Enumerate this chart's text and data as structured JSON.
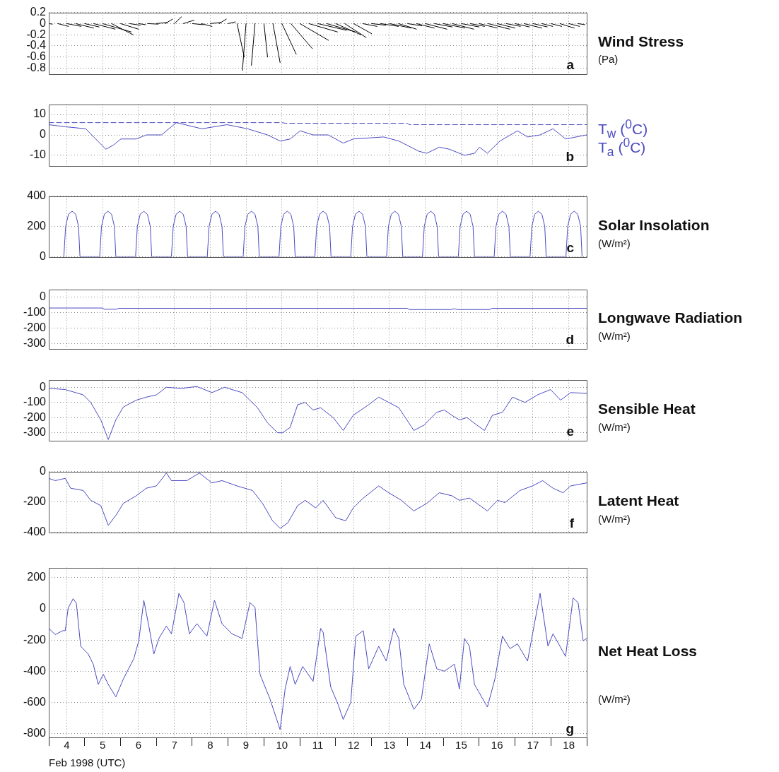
{
  "chart_data": [
    {
      "type": "line",
      "ylabel": "Wind Stress (Pa)",
      "annotations": [
        "a"
      ],
      "xlim": [
        4,
        19
      ],
      "xticks": [
        4.5,
        5.5,
        6.5,
        7.5,
        8.5,
        9.5,
        10.5,
        11.5,
        12.5,
        13.5,
        14.5,
        15.5,
        16.5,
        17.5,
        18.5
      ],
      "ylim": [
        -0.9,
        0.2
      ],
      "yticks": [
        0.2,
        0,
        -0.2,
        -0.4,
        -0.6,
        -0.8
      ],
      "grid": true,
      "tick_labels": "y",
      "marker": "none",
      "series": [
        {
          "color": "#000000",
          "x": [
            4,
            4.1
          ],
          "values": [
            0,
            -0.01
          ]
        },
        {
          "color": "#000000",
          "x": [
            4.25,
            4.55
          ],
          "values": [
            0,
            -0.05
          ]
        },
        {
          "color": "#000000",
          "x": [
            4.5,
            4.9
          ],
          "values": [
            0,
            -0.05
          ]
        },
        {
          "color": "#000000",
          "x": [
            4.75,
            5.25
          ],
          "values": [
            0,
            -0.08
          ]
        },
        {
          "color": "#000000",
          "x": [
            5,
            5.4
          ],
          "values": [
            0,
            -0.06
          ]
        },
        {
          "color": "#000000",
          "x": [
            5.25,
            5.85
          ],
          "values": [
            0,
            -0.1
          ]
        },
        {
          "color": "#000000",
          "x": [
            5.5,
            6.3
          ],
          "values": [
            0,
            -0.15
          ]
        },
        {
          "color": "#000000",
          "x": [
            5.75,
            6.35
          ],
          "values": [
            0,
            -0.2
          ]
        },
        {
          "color": "#000000",
          "x": [
            6,
            6.5
          ],
          "values": [
            0,
            -0.1
          ]
        },
        {
          "color": "#000000",
          "x": [
            6.25,
            6.55
          ],
          "values": [
            0,
            -0.03
          ]
        },
        {
          "color": "#000000",
          "x": [
            6.5,
            6.7
          ],
          "values": [
            0,
            -0.02
          ]
        },
        {
          "color": "#000000",
          "x": [
            6.75,
            7.05
          ],
          "values": [
            0,
            -0.01
          ]
        },
        {
          "color": "#000000",
          "x": [
            7,
            7.3
          ],
          "values": [
            0,
            0.02
          ]
        },
        {
          "color": "#000000",
          "x": [
            7.25,
            7.45
          ],
          "values": [
            0,
            0.08
          ]
        },
        {
          "color": "#000000",
          "x": [
            7.5,
            7.7
          ],
          "values": [
            0,
            0.12
          ]
        },
        {
          "color": "#000000",
          "x": [
            7.75,
            8.05
          ],
          "values": [
            0,
            0.06
          ]
        },
        {
          "color": "#000000",
          "x": [
            8,
            8.3
          ],
          "values": [
            0,
            -0.02
          ]
        },
        {
          "color": "#000000",
          "x": [
            8.25,
            8.55
          ],
          "values": [
            0,
            -0.05
          ]
        },
        {
          "color": "#000000",
          "x": [
            8.5,
            8.8
          ],
          "values": [
            0,
            0.02
          ]
        },
        {
          "color": "#000000",
          "x": [
            8.75,
            8.95
          ],
          "values": [
            0,
            0.08
          ]
        },
        {
          "color": "#000000",
          "x": [
            9,
            9.2
          ],
          "values": [
            0,
            0.03
          ]
        },
        {
          "color": "#000000",
          "x": [
            9.25,
            9.45
          ],
          "values": [
            0,
            -0.6
          ]
        },
        {
          "color": "#000000",
          "x": [
            9.5,
            9.4
          ],
          "values": [
            0,
            -0.84
          ]
        },
        {
          "color": "#000000",
          "x": [
            9.75,
            9.65
          ],
          "values": [
            0,
            -0.75
          ]
        },
        {
          "color": "#000000",
          "x": [
            10,
            10.1
          ],
          "values": [
            0,
            -0.6
          ]
        },
        {
          "color": "#000000",
          "x": [
            10.25,
            10.45
          ],
          "values": [
            0,
            -0.7
          ]
        },
        {
          "color": "#000000",
          "x": [
            10.5,
            10.9
          ],
          "values": [
            0,
            -0.55
          ]
        },
        {
          "color": "#000000",
          "x": [
            10.75,
            11.35
          ],
          "values": [
            0,
            -0.45
          ]
        },
        {
          "color": "#000000",
          "x": [
            11,
            11.8
          ],
          "values": [
            0,
            -0.3
          ]
        },
        {
          "color": "#000000",
          "x": [
            11.25,
            12.05
          ],
          "values": [
            0,
            -0.15
          ]
        },
        {
          "color": "#000000",
          "x": [
            11.5,
            12.3
          ],
          "values": [
            0,
            -0.12
          ]
        },
        {
          "color": "#000000",
          "x": [
            11.75,
            12.55
          ],
          "values": [
            0,
            -0.15
          ]
        },
        {
          "color": "#000000",
          "x": [
            12,
            12.7
          ],
          "values": [
            0,
            -0.2
          ]
        },
        {
          "color": "#000000",
          "x": [
            12.25,
            12.85
          ],
          "values": [
            0,
            -0.25
          ]
        },
        {
          "color": "#000000",
          "x": [
            12.5,
            13
          ],
          "values": [
            0,
            -0.18
          ]
        },
        {
          "color": "#000000",
          "x": [
            12.75,
            13.15
          ],
          "values": [
            0,
            -0.05
          ]
        },
        {
          "color": "#000000",
          "x": [
            13,
            13.4
          ],
          "values": [
            0,
            -0.03
          ]
        },
        {
          "color": "#000000",
          "x": [
            13.25,
            13.75
          ],
          "values": [
            0,
            -0.05
          ]
        },
        {
          "color": "#000000",
          "x": [
            13.5,
            14.1
          ],
          "values": [
            0,
            -0.08
          ]
        },
        {
          "color": "#000000",
          "x": [
            13.75,
            14.25
          ],
          "values": [
            0,
            -0.1
          ]
        },
        {
          "color": "#000000",
          "x": [
            14,
            14.4
          ],
          "values": [
            0,
            -0.04
          ]
        },
        {
          "color": "#000000",
          "x": [
            14.25,
            14.75
          ],
          "values": [
            0,
            -0.08
          ]
        },
        {
          "color": "#000000",
          "x": [
            14.5,
            15.1
          ],
          "values": [
            0,
            -0.1
          ]
        },
        {
          "color": "#000000",
          "x": [
            14.75,
            15.25
          ],
          "values": [
            0,
            -0.06
          ]
        },
        {
          "color": "#000000",
          "x": [
            15,
            15.6
          ],
          "values": [
            0,
            -0.08
          ]
        },
        {
          "color": "#000000",
          "x": [
            15.25,
            15.85
          ],
          "values": [
            0,
            -0.1
          ]
        },
        {
          "color": "#000000",
          "x": [
            15.5,
            16
          ],
          "values": [
            0,
            -0.06
          ]
        },
        {
          "color": "#000000",
          "x": [
            15.75,
            16.15
          ],
          "values": [
            0,
            -0.05
          ]
        },
        {
          "color": "#000000",
          "x": [
            16,
            16.5
          ],
          "values": [
            0,
            -0.08
          ]
        },
        {
          "color": "#000000",
          "x": [
            16.25,
            16.85
          ],
          "values": [
            0,
            -0.1
          ]
        },
        {
          "color": "#000000",
          "x": [
            16.5,
            17
          ],
          "values": [
            0,
            -0.08
          ]
        },
        {
          "color": "#000000",
          "x": [
            16.75,
            17.15
          ],
          "values": [
            0,
            -0.05
          ]
        },
        {
          "color": "#000000",
          "x": [
            17,
            17.4
          ],
          "values": [
            0,
            -0.06
          ]
        },
        {
          "color": "#000000",
          "x": [
            17.25,
            17.75
          ],
          "values": [
            0,
            -0.08
          ]
        },
        {
          "color": "#000000",
          "x": [
            17.5,
            17.9
          ],
          "values": [
            0,
            -0.06
          ]
        },
        {
          "color": "#000000",
          "x": [
            17.75,
            18.05
          ],
          "values": [
            0,
            -0.05
          ]
        },
        {
          "color": "#000000",
          "x": [
            18,
            18.3
          ],
          "values": [
            0,
            -0.05
          ]
        },
        {
          "color": "#000000",
          "x": [
            18.25,
            18.65
          ],
          "values": [
            0,
            -0.08
          ]
        },
        {
          "color": "#000000",
          "x": [
            18.5,
            18.8
          ],
          "values": [
            0,
            -0.05
          ]
        },
        {
          "color": "#000000",
          "x": [
            18.75,
            18.95
          ],
          "values": [
            0,
            -0.02
          ]
        }
      ]
    },
    {
      "type": "line",
      "annotations": [
        "b"
      ],
      "legend": "right",
      "xlim": [
        4,
        19
      ],
      "xticks": [
        4.5,
        5.5,
        6.5,
        7.5,
        8.5,
        9.5,
        10.5,
        11.5,
        12.5,
        13.5,
        14.5,
        15.5,
        16.5,
        17.5,
        18.5
      ],
      "ylim": [
        -15,
        15
      ],
      "yticks": [
        10,
        0,
        -10
      ],
      "grid": true,
      "tick_labels": "y",
      "marker": "none",
      "series": [
        {
          "name": "T$_{w}$ ($^{0}$C)",
          "color": "#4a4ac0",
          "line_style": "dashed",
          "x": [
            4,
            10.5,
            10.6,
            14,
            14.05,
            19
          ],
          "values": [
            6,
            6,
            5.7,
            5.7,
            5,
            5
          ]
        },
        {
          "name": "T$_{a}$ ($^{0}$C)",
          "color": "#4a4ac0",
          "line_style": "solid",
          "x": [
            4,
            4.46,
            5.03,
            5.31,
            5.59,
            5.8,
            6.01,
            6.44,
            6.72,
            7.14,
            7.56,
            8.27,
            8.97,
            9.54,
            10.1,
            10.45,
            10.73,
            11.01,
            11.37,
            11.79,
            12.21,
            12.49,
            13.34,
            13.76,
            14.32,
            14.54,
            14.89,
            15.17,
            15.59,
            15.87,
            16.01,
            16.23,
            16.58,
            17.07,
            17.35,
            17.7,
            18.06,
            18.41,
            19
          ],
          "values": [
            5,
            4,
            3,
            -2,
            -7,
            -5,
            -2,
            -2,
            0,
            0,
            6,
            3,
            5,
            3,
            0,
            -3,
            -2,
            2,
            0,
            0,
            -4,
            -2,
            -1,
            -3,
            -8,
            -9,
            -6,
            -7,
            -10,
            -9,
            -6,
            -9,
            -3,
            2,
            -1,
            0,
            3,
            -2,
            0
          ]
        }
      ]
    },
    {
      "type": "line",
      "ylabel": "Solar Insolation (W/m²)",
      "annotations": [
        "c"
      ],
      "xlim": [
        4,
        19
      ],
      "xticks": [
        4.5,
        5.5,
        6.5,
        7.5,
        8.5,
        9.5,
        10.5,
        11.5,
        12.5,
        13.5,
        14.5,
        15.5,
        16.5,
        17.5,
        18.5
      ],
      "ylim": [
        0,
        400
      ],
      "yticks": [
        0,
        200,
        400
      ],
      "grid": true,
      "tick_labels": "y",
      "marker": "none",
      "series": [
        {
          "color": "#4a4ac0",
          "x": [
            4.42,
            4.47,
            4.55,
            4.65,
            4.75,
            4.83,
            4.87,
            5.42,
            5.47,
            5.55,
            5.65,
            5.75,
            5.83,
            5.87,
            6.42,
            6.47,
            6.55,
            6.65,
            6.75,
            6.83,
            6.87,
            7.42,
            7.47,
            7.55,
            7.65,
            7.75,
            7.83,
            7.87,
            8.42,
            8.47,
            8.55,
            8.65,
            8.75,
            8.83,
            8.87,
            9.42,
            9.47,
            9.55,
            9.65,
            9.75,
            9.83,
            9.87,
            10.42,
            10.47,
            10.55,
            10.65,
            10.75,
            10.83,
            10.87,
            11.42,
            11.47,
            11.55,
            11.65,
            11.75,
            11.83,
            11.87,
            12.42,
            12.47,
            12.55,
            12.65,
            12.75,
            12.83,
            12.87,
            13.42,
            13.47,
            13.55,
            13.65,
            13.75,
            13.83,
            13.87,
            14.42,
            14.47,
            14.55,
            14.65,
            14.75,
            14.83,
            14.87,
            15.42,
            15.47,
            15.55,
            15.65,
            15.75,
            15.83,
            15.87,
            16.42,
            16.47,
            16.55,
            16.65,
            16.75,
            16.83,
            16.87,
            17.42,
            17.47,
            17.55,
            17.65,
            17.75,
            17.83,
            17.87,
            18.42,
            18.47,
            18.55,
            18.65,
            18.75,
            18.83,
            18.87
          ],
          "values": [
            0,
            200,
            280,
            300,
            280,
            200,
            0,
            0,
            200,
            280,
            300,
            280,
            200,
            0,
            0,
            200,
            280,
            300,
            280,
            200,
            0,
            0,
            200,
            280,
            300,
            280,
            200,
            0,
            0,
            200,
            280,
            300,
            280,
            200,
            0,
            0,
            200,
            280,
            300,
            280,
            200,
            0,
            0,
            200,
            280,
            300,
            280,
            200,
            0,
            0,
            200,
            280,
            300,
            280,
            200,
            0,
            0,
            200,
            280,
            300,
            280,
            200,
            0,
            0,
            200,
            280,
            300,
            280,
            200,
            0,
            0,
            200,
            280,
            300,
            280,
            200,
            0,
            0,
            200,
            280,
            300,
            280,
            200,
            0,
            0,
            200,
            280,
            300,
            280,
            200,
            0,
            0,
            200,
            280,
            300,
            280,
            200,
            0,
            0,
            200,
            280,
            300,
            280,
            200,
            0
          ]
        }
      ]
    },
    {
      "type": "line",
      "ylabel": "Longwave Radiation (W/m²)",
      "annotations": [
        "d"
      ],
      "xlim": [
        4,
        19
      ],
      "xticks": [
        4.5,
        5.5,
        6.5,
        7.5,
        8.5,
        9.5,
        10.5,
        11.5,
        12.5,
        13.5,
        14.5,
        15.5,
        16.5,
        17.5,
        18.5
      ],
      "ylim": [
        -330,
        50
      ],
      "yticks": [
        0,
        -100,
        -200,
        -300
      ],
      "grid": true,
      "tick_labels": "y",
      "marker": "none",
      "series": [
        {
          "color": "#4a4ac0",
          "x": [
            4,
            5.5,
            5.55,
            5.9,
            5.95,
            14,
            14.05,
            15.2,
            15.3,
            15.4,
            16.3,
            16.35,
            19
          ],
          "values": [
            -70,
            -70,
            -78,
            -78,
            -72,
            -72,
            -80,
            -80,
            -75,
            -80,
            -80,
            -72,
            -72
          ]
        }
      ]
    },
    {
      "type": "line",
      "ylabel": "Sensible Heat (W/m²)",
      "annotations": [
        "e"
      ],
      "xlim": [
        4,
        19
      ],
      "xticks": [
        4.5,
        5.5,
        6.5,
        7.5,
        8.5,
        9.5,
        10.5,
        11.5,
        12.5,
        13.5,
        14.5,
        15.5,
        16.5,
        17.5,
        18.5
      ],
      "ylim": [
        -350,
        50
      ],
      "yticks": [
        0,
        -100,
        -200,
        -300
      ],
      "grid": true,
      "tick_labels": "y",
      "marker": "none",
      "series": [
        {
          "color": "#4a4ac0",
          "x": [
            4,
            4.46,
            4.96,
            5.17,
            5.45,
            5.66,
            5.87,
            6.08,
            6.44,
            6.72,
            7,
            7.28,
            7.7,
            8.13,
            8.55,
            8.9,
            9.39,
            9.82,
            10.1,
            10.38,
            10.52,
            10.73,
            10.94,
            11.15,
            11.37,
            11.58,
            11.93,
            12.21,
            12.49,
            12.92,
            13.2,
            13.48,
            13.76,
            14.18,
            14.46,
            14.82,
            15.03,
            15.24,
            15.45,
            15.66,
            15.94,
            16.15,
            16.37,
            16.65,
            16.93,
            17.28,
            17.63,
            17.99,
            18.27,
            18.55,
            19
          ],
          "values": [
            -7,
            -15,
            -50,
            -100,
            -215,
            -345,
            -215,
            -130,
            -85,
            -65,
            -50,
            0,
            -7,
            5,
            -35,
            0,
            -35,
            -135,
            -235,
            -300,
            -300,
            -265,
            -115,
            -100,
            -150,
            -135,
            -200,
            -285,
            -185,
            -115,
            -65,
            -100,
            -135,
            -285,
            -250,
            -165,
            -150,
            -185,
            -215,
            -200,
            -250,
            -285,
            -185,
            -165,
            -65,
            -100,
            -50,
            -15,
            -85,
            -35,
            -40
          ]
        }
      ]
    },
    {
      "type": "line",
      "ylabel": "Latent Heat (W/m²)",
      "annotations": [
        "f"
      ],
      "xlim": [
        4,
        19
      ],
      "xticks": [
        4.5,
        5.5,
        6.5,
        7.5,
        8.5,
        9.5,
        10.5,
        11.5,
        12.5,
        13.5,
        14.5,
        15.5,
        16.5,
        17.5,
        18.5
      ],
      "ylim": [
        -400,
        0
      ],
      "yticks": [
        0,
        -200,
        -400
      ],
      "grid": true,
      "tick_labels": "y",
      "marker": "none",
      "series": [
        {
          "color": "#4a4ac0",
          "x": [
            4,
            4.18,
            4.46,
            4.61,
            4.96,
            5.17,
            5.45,
            5.66,
            5.87,
            6.08,
            6.44,
            6.72,
            7,
            7.28,
            7.42,
            7.85,
            8.2,
            8.55,
            8.83,
            9.25,
            9.68,
            9.96,
            10.24,
            10.45,
            10.66,
            10.94,
            11.15,
            11.44,
            11.65,
            12,
            12.28,
            12.49,
            12.77,
            13.2,
            13.48,
            13.83,
            14.18,
            14.54,
            14.89,
            15.24,
            15.45,
            15.73,
            16.23,
            16.51,
            16.72,
            17.14,
            17.49,
            17.77,
            18.06,
            18.34,
            18.55,
            19
          ],
          "values": [
            -45,
            -60,
            -45,
            -110,
            -125,
            -190,
            -225,
            -355,
            -290,
            -210,
            -160,
            -110,
            -95,
            -10,
            -60,
            -60,
            -10,
            -75,
            -60,
            -95,
            -125,
            -210,
            -325,
            -375,
            -340,
            -225,
            -190,
            -240,
            -190,
            -305,
            -325,
            -240,
            -175,
            -95,
            -140,
            -190,
            -260,
            -210,
            -140,
            -160,
            -190,
            -175,
            -260,
            -190,
            -205,
            -125,
            -95,
            -60,
            -110,
            -140,
            -95,
            -75
          ]
        }
      ]
    },
    {
      "type": "line",
      "ylabel": "Net Heat Loss (W/m²)",
      "xlabel": "Feb 1998 (UTC)",
      "annotations": [
        "g"
      ],
      "xlim": [
        4,
        19
      ],
      "xticks": [
        {
          "value": 4,
          "label": null
        },
        {
          "value": 4.5,
          "label": "4"
        },
        {
          "value": 5,
          "label": null
        },
        {
          "value": 5.5,
          "label": "5"
        },
        {
          "value": 6,
          "label": null
        },
        {
          "value": 6.5,
          "label": "6"
        },
        {
          "value": 7,
          "label": null
        },
        {
          "value": 7.5,
          "label": "7"
        },
        {
          "value": 8,
          "label": null
        },
        {
          "value": 8.5,
          "label": "8"
        },
        {
          "value": 9,
          "label": null
        },
        {
          "value": 9.5,
          "label": "9"
        },
        {
          "value": 10,
          "label": null
        },
        {
          "value": 10.5,
          "label": "10"
        },
        {
          "value": 11,
          "label": null
        },
        {
          "value": 11.5,
          "label": "11"
        },
        {
          "value": 12,
          "label": null
        },
        {
          "value": 12.5,
          "label": "12"
        },
        {
          "value": 13,
          "label": null
        },
        {
          "value": 13.5,
          "label": "13"
        },
        {
          "value": 14,
          "label": null
        },
        {
          "value": 14.5,
          "label": "14"
        },
        {
          "value": 15,
          "label": null
        },
        {
          "value": 15.5,
          "label": "15"
        },
        {
          "value": 16,
          "label": null
        },
        {
          "value": 16.5,
          "label": "16"
        },
        {
          "value": 17,
          "label": null
        },
        {
          "value": 17.5,
          "label": "17"
        },
        {
          "value": 18,
          "label": null
        },
        {
          "value": 18.5,
          "label": "18"
        },
        {
          "value": 19,
          "label": null
        }
      ],
      "ylim": [
        -825,
        265
      ],
      "yticks": [
        200,
        0,
        -200,
        -400,
        -600,
        -800
      ],
      "grid": true,
      "marker": "none",
      "series": [
        {
          "color": "#4a4ac0",
          "x": [
            4,
            4.18,
            4.39,
            4.46,
            4.54,
            4.68,
            4.77,
            4.89,
            5.1,
            5.24,
            5.38,
            5.52,
            5.66,
            5.87,
            6.08,
            6.37,
            6.51,
            6.65,
            6.79,
            6.93,
            7.07,
            7.28,
            7.42,
            7.63,
            7.77,
            7.92,
            8.13,
            8.41,
            8.62,
            8.83,
            9.11,
            9.39,
            9.61,
            9.75,
            9.89,
            10.17,
            10.45,
            10.59,
            10.73,
            10.87,
            11.08,
            11.37,
            11.58,
            11.65,
            11.86,
            12.07,
            12.21,
            12.42,
            12.56,
            12.77,
            12.92,
            13.2,
            13.41,
            13.62,
            13.76,
            13.9,
            14.18,
            14.39,
            14.61,
            14.82,
            15.03,
            15.31,
            15.45,
            15.59,
            15.73,
            15.87,
            16.23,
            16.44,
            16.65,
            16.86,
            17.07,
            17.35,
            17.49,
            17.7,
            17.92,
            18.06,
            18.41,
            18.62,
            18.76,
            18.9,
            19
          ],
          "values": [
            -125,
            -165,
            -140,
            -140,
            5,
            65,
            35,
            -240,
            -290,
            -355,
            -485,
            -420,
            -485,
            -565,
            -450,
            -320,
            -205,
            55,
            -110,
            -290,
            -190,
            -110,
            -160,
            100,
            40,
            -160,
            -95,
            -175,
            55,
            -95,
            -160,
            -190,
            40,
            10,
            -420,
            -580,
            -775,
            -515,
            -370,
            -485,
            -370,
            -465,
            -125,
            -150,
            -500,
            -615,
            -710,
            -600,
            -175,
            -140,
            -385,
            -240,
            -335,
            -125,
            -190,
            -485,
            -645,
            -580,
            -225,
            -385,
            -400,
            -355,
            -515,
            -190,
            -240,
            -485,
            -630,
            -450,
            -175,
            -255,
            -225,
            -335,
            -160,
            100,
            -240,
            -160,
            -305,
            70,
            40,
            -205,
            -190
          ]
        }
      ]
    }
  ]
}
